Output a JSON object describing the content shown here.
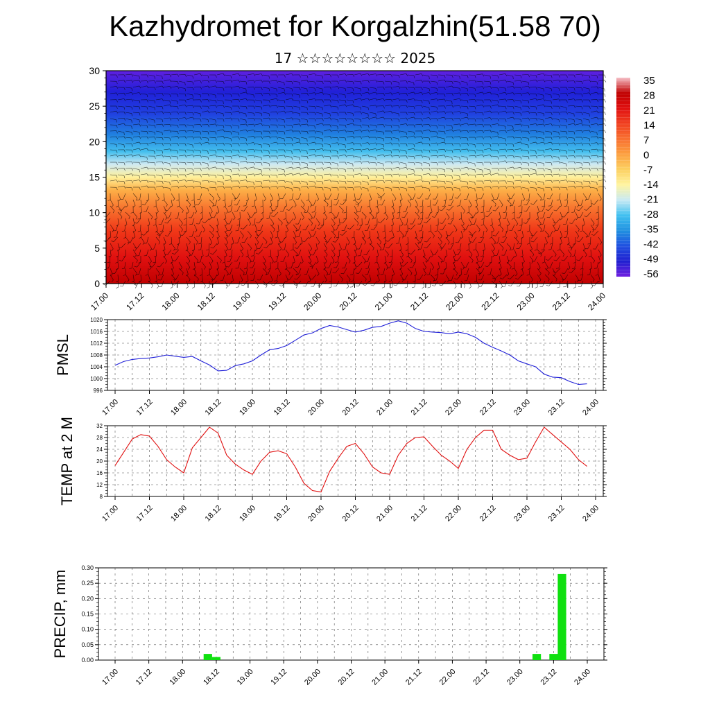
{
  "title": "Kazhydromet for Korgalzhin(51.58 70)",
  "subtitle": "17 ☆☆☆☆☆☆☆☆ 2025",
  "colors": {
    "pmsl_line": "#1f1fd8",
    "temp_line": "#e01010",
    "precip_bar": "#10e010",
    "axis": "#000000"
  },
  "time_labels": [
    "17.00",
    "17.12",
    "18.00",
    "18.12",
    "19.00",
    "19.12",
    "20.00",
    "20.12",
    "21.00",
    "21.12",
    "22.00",
    "22.12",
    "23.00",
    "23.12",
    "24.00"
  ],
  "chart_data": [
    {
      "id": "cross-section",
      "type": "heatmap",
      "title": "",
      "ylabel": "",
      "ylim": [
        0,
        30
      ],
      "yticks": [
        0,
        5,
        10,
        15,
        20,
        25,
        30
      ],
      "colorbar_labels": [
        "35",
        "28",
        "21",
        "14",
        "7",
        "0",
        "-7",
        "-14",
        "-21",
        "-28",
        "-35",
        "-42",
        "-49",
        "-56"
      ],
      "colorbar_stops": [
        "#f5c0c8",
        "#c00000",
        "#e01010",
        "#f04020",
        "#f87030",
        "#fca040",
        "#fcd060",
        "#fff4a0",
        "#c8eaf4",
        "#40c0f0",
        "#2090e0",
        "#2050e0",
        "#2020d0",
        "#7020e0"
      ],
      "layers": [
        {
          "height": 2.5,
          "temp": 32
        },
        {
          "height": 7.5,
          "temp": 24
        },
        {
          "height": 12.5,
          "temp": 10
        },
        {
          "height": 15.5,
          "temp": -8
        },
        {
          "height": 19,
          "temp": -25
        },
        {
          "height": 22.5,
          "temp": -40
        },
        {
          "height": 26,
          "temp": -52
        },
        {
          "height": 29.5,
          "temp": -60
        }
      ]
    },
    {
      "id": "pmsl",
      "type": "line",
      "ylabel": "PMSL",
      "ylim": [
        996,
        1020
      ],
      "yticks": [
        996,
        1000,
        1004,
        1008,
        1012,
        1016,
        1020
      ],
      "x": [
        0,
        3,
        6,
        9,
        12,
        15,
        18,
        21,
        24,
        27,
        30,
        33,
        36,
        39,
        42,
        45,
        48,
        51,
        54,
        57,
        60,
        63,
        66,
        69,
        72,
        75,
        78,
        81,
        84,
        87,
        90,
        93,
        96,
        99,
        102,
        105,
        108,
        111,
        114,
        117,
        120,
        123,
        126,
        129,
        132,
        135,
        138,
        141,
        144,
        147,
        150,
        153,
        156,
        159,
        162,
        165
      ],
      "values": [
        1004.5,
        1005.8,
        1006.5,
        1006.8,
        1007.0,
        1007.4,
        1008.0,
        1007.6,
        1007.2,
        1007.5,
        1006.0,
        1004.6,
        1002.6,
        1002.8,
        1004.4,
        1005.0,
        1006.0,
        1008.0,
        1009.8,
        1010.2,
        1011.2,
        1013.0,
        1014.8,
        1015.5,
        1017.0,
        1018.0,
        1017.5,
        1016.6,
        1015.8,
        1016.4,
        1017.4,
        1017.7,
        1018.8,
        1019.6,
        1018.8,
        1017.0,
        1016.0,
        1015.8,
        1015.6,
        1015.2,
        1015.8,
        1015.2,
        1014.0,
        1012.0,
        1010.6,
        1009.4,
        1008.0,
        1006.0,
        1005.0,
        1004.0,
        1001.5,
        1000.5,
        1000.3,
        999.0,
        998.0,
        998.2
      ]
    },
    {
      "id": "temp",
      "type": "line",
      "ylabel": "TEMP at 2 M",
      "ylim": [
        8,
        32
      ],
      "yticks": [
        8,
        12,
        16,
        20,
        24,
        28,
        32
      ],
      "x": [
        0,
        3,
        6,
        9,
        12,
        15,
        18,
        21,
        24,
        27,
        30,
        33,
        36,
        39,
        42,
        45,
        48,
        51,
        54,
        57,
        60,
        63,
        66,
        69,
        72,
        75,
        78,
        81,
        84,
        87,
        90,
        93,
        96,
        99,
        102,
        105,
        108,
        111,
        114,
        117,
        120,
        123,
        126,
        129,
        132,
        135,
        138,
        141,
        144,
        147,
        150,
        153,
        156,
        159,
        162,
        165
      ],
      "values": [
        18.5,
        23,
        27.5,
        29,
        28.5,
        25,
        20.5,
        18,
        16,
        24.5,
        28,
        31.5,
        29.5,
        22,
        19,
        17,
        15.5,
        20,
        23,
        23.5,
        22.5,
        18,
        12.5,
        10,
        9.5,
        16.5,
        21,
        25,
        26,
        22.5,
        18,
        16,
        15.5,
        22,
        26,
        28,
        28.2,
        25,
        22,
        20,
        17.5,
        24,
        28,
        30.5,
        30.5,
        24,
        22,
        20.5,
        21,
        26.5,
        31.5,
        29,
        26.5,
        24,
        20.5,
        18.2
      ]
    },
    {
      "id": "precip",
      "type": "bar",
      "ylabel": "PRECIP, mm",
      "ylim": [
        0,
        0.3
      ],
      "yticks": [
        "0.00",
        "0.05",
        "0.10",
        "0.15",
        "0.20",
        "0.25",
        "0.30"
      ],
      "x": [
        33,
        36,
        150,
        156,
        159
      ],
      "values": [
        0.02,
        0.01,
        0.02,
        0.02,
        0.28
      ]
    }
  ]
}
